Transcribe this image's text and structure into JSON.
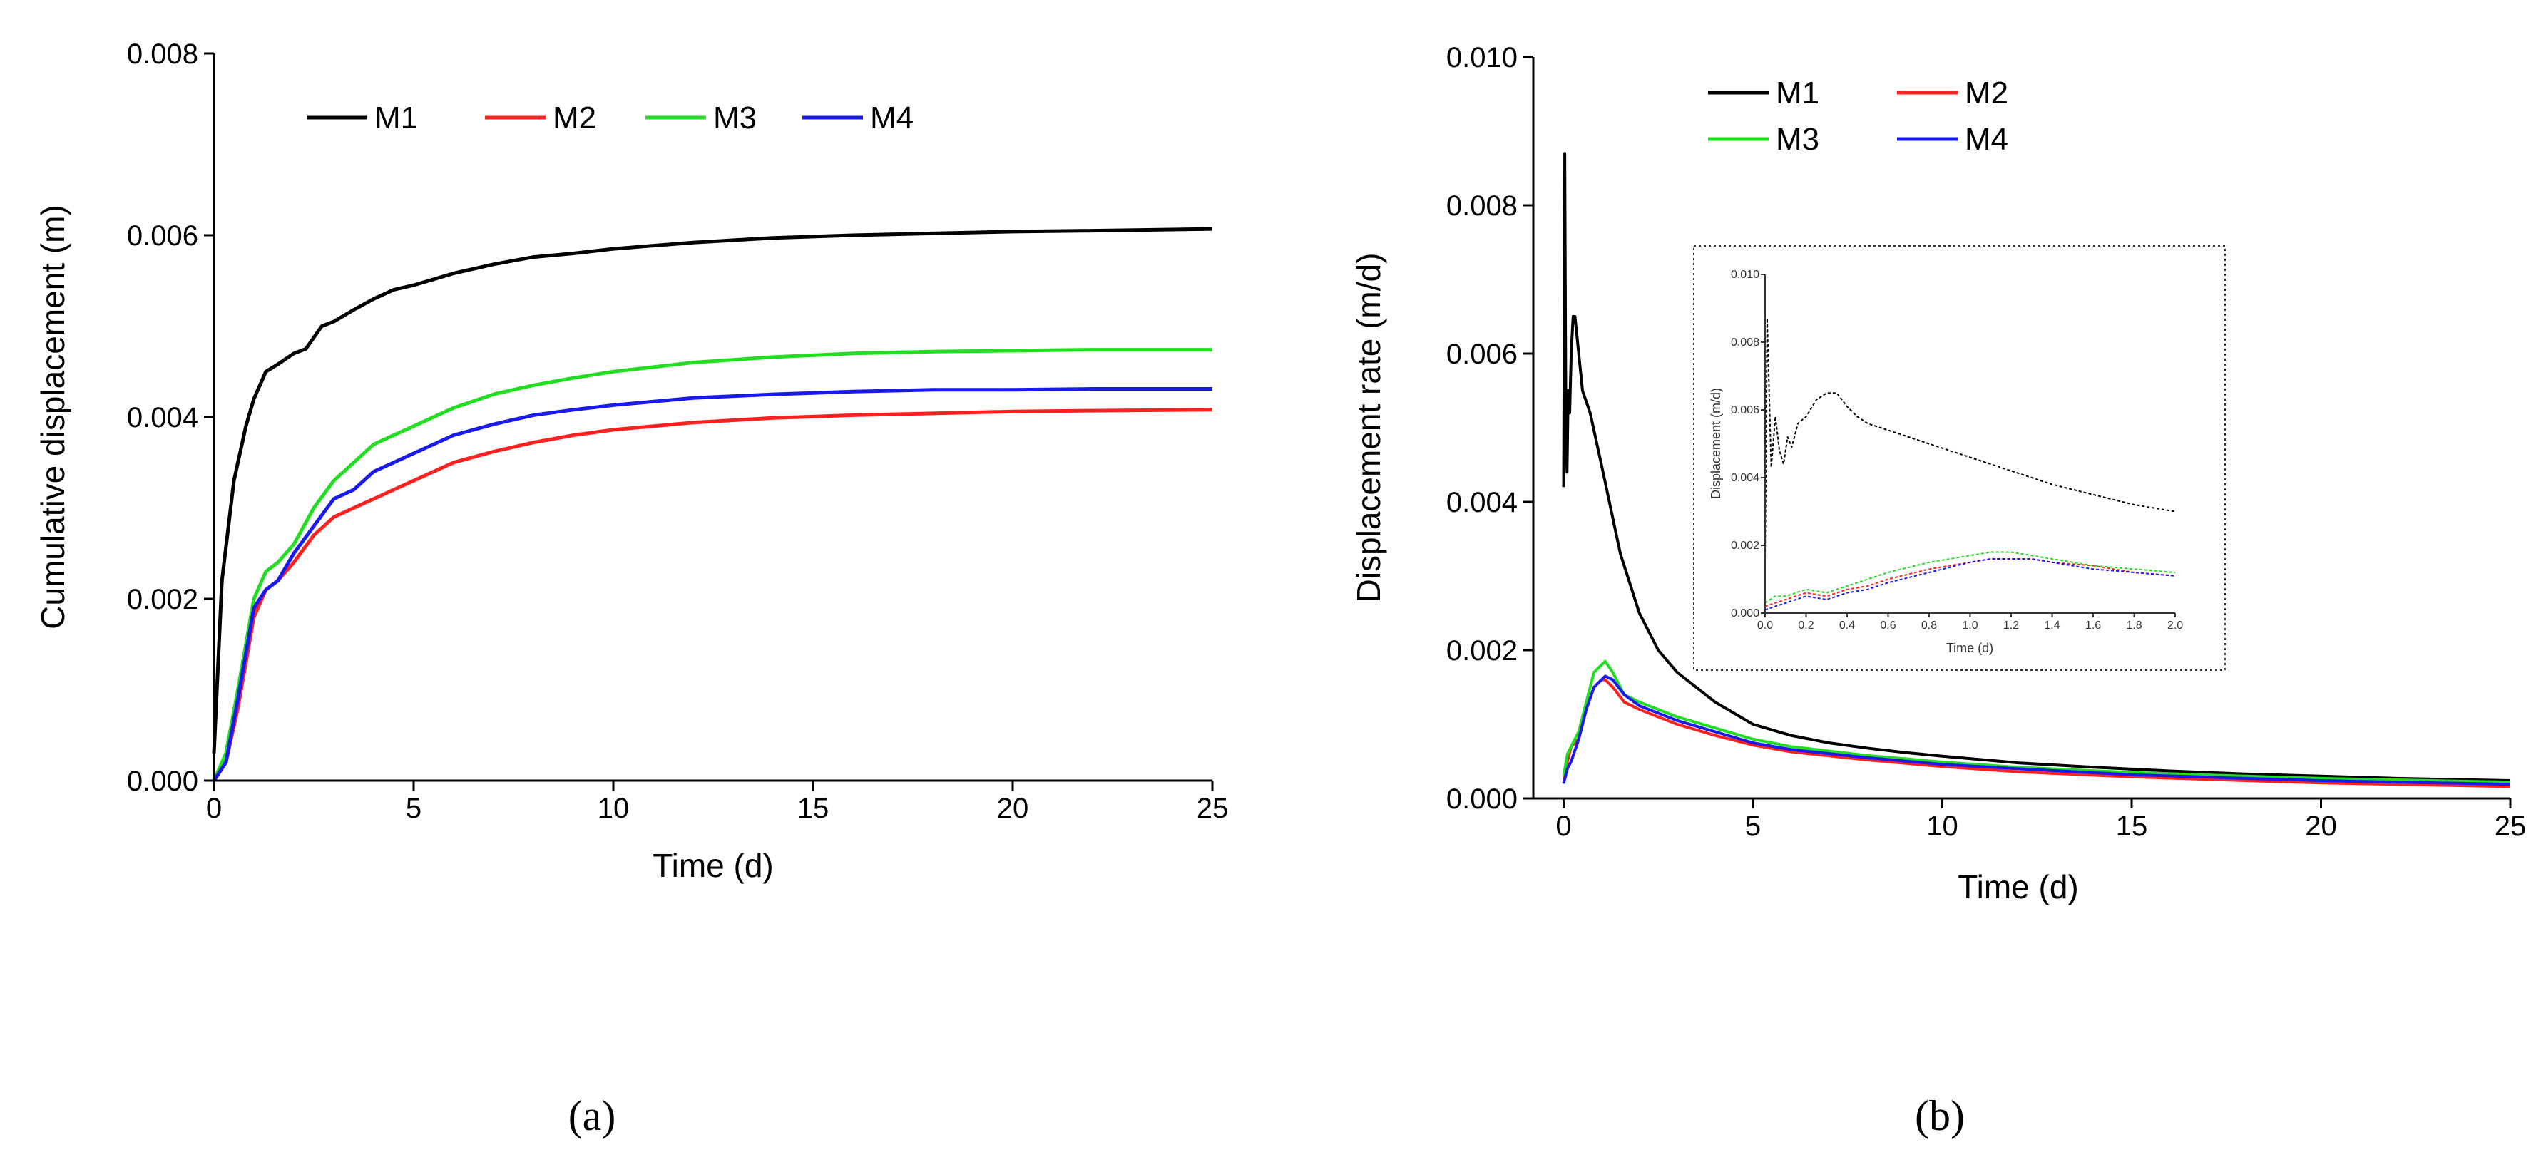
{
  "colors": {
    "M1": "#000000",
    "M2": "#ff2020",
    "M3": "#22dd22",
    "M4": "#1a1aee"
  },
  "captions": {
    "a": "(a)",
    "b": "(b)"
  },
  "chart_data": [
    {
      "id": "a",
      "type": "line",
      "title": "",
      "xlabel": "Time (d)",
      "ylabel": "Cumulative displacement (m)",
      "xlim": [
        0,
        25
      ],
      "ylim": [
        0,
        0.008
      ],
      "xticks": [
        0,
        5,
        10,
        15,
        20,
        25
      ],
      "yticks": [
        0,
        0.002,
        0.004,
        0.006,
        0.008
      ],
      "xtick_labels": [
        "0",
        "5",
        "10",
        "15",
        "20",
        "25"
      ],
      "ytick_labels": [
        "0.000",
        "0.002",
        "0.004",
        "0.006",
        "0.008"
      ],
      "legend": [
        "M1",
        "M2",
        "M3",
        "M4"
      ],
      "legend_position": "top-left",
      "series": [
        {
          "name": "M1",
          "x": [
            0,
            0.2,
            0.5,
            0.8,
            1.0,
            1.3,
            1.6,
            2.0,
            2.3,
            2.7,
            3.0,
            3.5,
            4.0,
            4.5,
            5,
            6,
            7,
            8,
            9,
            10,
            12,
            14,
            16,
            18,
            20,
            22,
            25
          ],
          "y": [
            0.0003,
            0.0022,
            0.0033,
            0.0039,
            0.0042,
            0.0045,
            0.00458,
            0.0047,
            0.00475,
            0.005,
            0.00505,
            0.00518,
            0.0053,
            0.0054,
            0.00545,
            0.00558,
            0.00568,
            0.00576,
            0.0058,
            0.00585,
            0.00592,
            0.00597,
            0.006,
            0.00602,
            0.00604,
            0.00605,
            0.00607
          ]
        },
        {
          "name": "M2",
          "x": [
            0,
            0.3,
            0.6,
            1.0,
            1.3,
            1.6,
            2.0,
            2.5,
            3.0,
            3.5,
            4.0,
            4.5,
            5,
            6,
            7,
            8,
            9,
            10,
            12,
            14,
            16,
            18,
            20,
            22,
            25
          ],
          "y": [
            0,
            0.0002,
            0.0008,
            0.0018,
            0.0021,
            0.0022,
            0.0024,
            0.0027,
            0.0029,
            0.003,
            0.0031,
            0.0032,
            0.0033,
            0.0035,
            0.00362,
            0.00372,
            0.0038,
            0.00386,
            0.00394,
            0.00399,
            0.00402,
            0.00404,
            0.00406,
            0.00407,
            0.00408
          ]
        },
        {
          "name": "M3",
          "x": [
            0,
            0.3,
            0.6,
            1.0,
            1.3,
            1.6,
            2.0,
            2.5,
            3.0,
            3.5,
            4.0,
            4.5,
            5,
            6,
            7,
            8,
            9,
            10,
            12,
            14,
            16,
            18,
            20,
            22,
            25
          ],
          "y": [
            0,
            0.0003,
            0.001,
            0.002,
            0.0023,
            0.0024,
            0.0026,
            0.003,
            0.0033,
            0.0035,
            0.0037,
            0.0038,
            0.0039,
            0.0041,
            0.00425,
            0.00435,
            0.00443,
            0.0045,
            0.0046,
            0.00466,
            0.0047,
            0.00472,
            0.00473,
            0.00474,
            0.00474
          ]
        },
        {
          "name": "M4",
          "x": [
            0,
            0.3,
            0.6,
            1.0,
            1.3,
            1.6,
            2.0,
            2.5,
            3.0,
            3.5,
            4.0,
            4.5,
            5,
            6,
            7,
            8,
            9,
            10,
            12,
            14,
            16,
            18,
            20,
            22,
            25
          ],
          "y": [
            0,
            0.0002,
            0.0009,
            0.0019,
            0.0021,
            0.0022,
            0.0025,
            0.0028,
            0.0031,
            0.0032,
            0.0034,
            0.0035,
            0.0036,
            0.0038,
            0.00392,
            0.00402,
            0.00408,
            0.00413,
            0.00421,
            0.00425,
            0.00428,
            0.0043,
            0.0043,
            0.00431,
            0.00431
          ]
        }
      ]
    },
    {
      "id": "b",
      "type": "line",
      "title": "",
      "xlabel": "Time (d)",
      "ylabel": "Displacement rate (m/d)",
      "xlim": [
        -0.8,
        25
      ],
      "ylim": [
        0,
        0.01
      ],
      "xticks": [
        0,
        5,
        10,
        15,
        20,
        25
      ],
      "yticks": [
        0,
        0.002,
        0.004,
        0.006,
        0.008,
        0.01
      ],
      "xtick_labels": [
        "0",
        "5",
        "10",
        "15",
        "20",
        "25"
      ],
      "ytick_labels": [
        "0.000",
        "0.002",
        "0.004",
        "0.006",
        "0.008",
        "0.010"
      ],
      "legend": [
        "M1",
        "M2",
        "M3",
        "M4"
      ],
      "legend_position": "top-left",
      "series": [
        {
          "name": "M1",
          "x": [
            0,
            0.03,
            0.06,
            0.09,
            0.12,
            0.16,
            0.2,
            0.25,
            0.3,
            0.4,
            0.5,
            0.7,
            1.0,
            1.5,
            2,
            2.5,
            3,
            4,
            5,
            6,
            7,
            8,
            9,
            10,
            12,
            14,
            16,
            18,
            20,
            22,
            25
          ],
          "y": [
            0.0042,
            0.0087,
            0.0049,
            0.0044,
            0.0055,
            0.0052,
            0.006,
            0.0065,
            0.0065,
            0.006,
            0.0055,
            0.0052,
            0.0045,
            0.0033,
            0.0025,
            0.002,
            0.0017,
            0.0013,
            0.001,
            0.00085,
            0.00075,
            0.00068,
            0.00062,
            0.00057,
            0.00048,
            0.00042,
            0.00037,
            0.00033,
            0.0003,
            0.00027,
            0.00024
          ]
        },
        {
          "name": "M2",
          "x": [
            0,
            0.1,
            0.2,
            0.4,
            0.6,
            0.8,
            1.0,
            1.1,
            1.3,
            1.6,
            2.0,
            2.5,
            3,
            4,
            5,
            6,
            8,
            10,
            12,
            15,
            18,
            20,
            22,
            25
          ],
          "y": [
            0.0002,
            0.0005,
            0.0007,
            0.0008,
            0.0012,
            0.0015,
            0.0016,
            0.0016,
            0.0015,
            0.0013,
            0.0012,
            0.0011,
            0.001,
            0.00085,
            0.00072,
            0.00063,
            0.00052,
            0.00043,
            0.00036,
            0.00029,
            0.00024,
            0.00021,
            0.00019,
            0.00016
          ]
        },
        {
          "name": "M3",
          "x": [
            0,
            0.1,
            0.2,
            0.4,
            0.6,
            0.8,
            1.0,
            1.1,
            1.3,
            1.6,
            2.0,
            2.5,
            3,
            4,
            5,
            6,
            8,
            10,
            12,
            15,
            18,
            20,
            22,
            25
          ],
          "y": [
            0.0003,
            0.0006,
            0.0007,
            0.0009,
            0.0013,
            0.0017,
            0.0018,
            0.00185,
            0.0017,
            0.0014,
            0.0013,
            0.0012,
            0.0011,
            0.00095,
            0.0008,
            0.0007,
            0.00058,
            0.00049,
            0.00042,
            0.00035,
            0.0003,
            0.00027,
            0.00025,
            0.00022
          ]
        },
        {
          "name": "M4",
          "x": [
            0,
            0.1,
            0.2,
            0.4,
            0.6,
            0.8,
            1.0,
            1.1,
            1.3,
            1.6,
            2.0,
            2.5,
            3,
            4,
            5,
            6,
            8,
            10,
            12,
            15,
            18,
            20,
            22,
            25
          ],
          "y": [
            0.0002,
            0.0004,
            0.0005,
            0.0008,
            0.0012,
            0.0015,
            0.0016,
            0.00165,
            0.0016,
            0.0014,
            0.00125,
            0.00115,
            0.00105,
            0.0009,
            0.00075,
            0.00066,
            0.00055,
            0.00046,
            0.0004,
            0.00032,
            0.00027,
            0.00024,
            0.00022,
            0.00019
          ]
        }
      ],
      "inset": {
        "type": "line",
        "xlabel": "Time (d)",
        "ylabel": "Displacement (m/d)",
        "xlim": [
          0,
          2.0
        ],
        "ylim": [
          0,
          0.01
        ],
        "xticks": [
          0,
          0.2,
          0.4,
          0.6,
          0.8,
          1.0,
          1.2,
          1.4,
          1.6,
          1.8,
          2.0
        ],
        "xtick_labels": [
          "0.0",
          "0.2",
          "0.4",
          "0.6",
          "0.8",
          "1.0",
          "1.2",
          "1.4",
          "1.6",
          "1.8",
          "2.0"
        ],
        "yticks": [
          0,
          0.002,
          0.004,
          0.006,
          0.008,
          0.01
        ],
        "ytick_labels": [
          "0.000",
          "0.002",
          "0.004",
          "0.006",
          "0.008",
          "0.010"
        ],
        "series": [
          {
            "name": "M1",
            "x": [
              0,
              0.01,
              0.03,
              0.05,
              0.07,
              0.09,
              0.11,
              0.13,
              0.16,
              0.2,
              0.25,
              0.3,
              0.35,
              0.4,
              0.45,
              0.5,
              0.6,
              0.7,
              0.8,
              1.0,
              1.2,
              1.4,
              1.6,
              1.8,
              2.0
            ],
            "y": [
              0.0015,
              0.0087,
              0.0043,
              0.0058,
              0.0048,
              0.0044,
              0.0052,
              0.0049,
              0.0056,
              0.0058,
              0.0063,
              0.0065,
              0.0065,
              0.0061,
              0.0058,
              0.0056,
              0.0054,
              0.0052,
              0.005,
              0.0046,
              0.0042,
              0.0038,
              0.0035,
              0.0032,
              0.003
            ]
          },
          {
            "name": "M2",
            "x": [
              0,
              0.05,
              0.1,
              0.2,
              0.3,
              0.4,
              0.5,
              0.6,
              0.8,
              1.0,
              1.1,
              1.2,
              1.3,
              1.4,
              1.6,
              1.8,
              2.0
            ],
            "y": [
              0.0002,
              0.0003,
              0.0004,
              0.0006,
              0.0005,
              0.0007,
              0.0008,
              0.001,
              0.0013,
              0.0015,
              0.0016,
              0.0016,
              0.0016,
              0.0015,
              0.0014,
              0.0012,
              0.0011
            ]
          },
          {
            "name": "M3",
            "x": [
              0,
              0.05,
              0.1,
              0.2,
              0.3,
              0.4,
              0.5,
              0.6,
              0.8,
              1.0,
              1.1,
              1.2,
              1.3,
              1.4,
              1.6,
              1.8,
              2.0
            ],
            "y": [
              0.0003,
              0.0005,
              0.0005,
              0.0007,
              0.0006,
              0.0008,
              0.001,
              0.0012,
              0.0015,
              0.0017,
              0.0018,
              0.0018,
              0.0017,
              0.0016,
              0.0014,
              0.0013,
              0.0012
            ]
          },
          {
            "name": "M4",
            "x": [
              0,
              0.05,
              0.1,
              0.2,
              0.3,
              0.4,
              0.5,
              0.6,
              0.8,
              1.0,
              1.1,
              1.2,
              1.3,
              1.4,
              1.6,
              1.8,
              2.0
            ],
            "y": [
              0.0001,
              0.0002,
              0.0003,
              0.0005,
              0.0004,
              0.0006,
              0.0007,
              0.0009,
              0.0012,
              0.0015,
              0.0016,
              0.0016,
              0.0016,
              0.0015,
              0.0013,
              0.0012,
              0.0011
            ]
          }
        ]
      }
    }
  ]
}
